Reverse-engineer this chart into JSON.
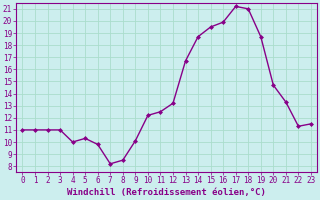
{
  "x": [
    0,
    1,
    2,
    3,
    4,
    5,
    6,
    7,
    8,
    9,
    10,
    11,
    12,
    13,
    14,
    15,
    16,
    17,
    18,
    19,
    20,
    21,
    22,
    23
  ],
  "y": [
    11.0,
    11.0,
    11.0,
    11.0,
    10.0,
    10.3,
    9.8,
    8.2,
    8.5,
    10.1,
    12.2,
    12.5,
    13.2,
    16.7,
    18.7,
    19.5,
    19.9,
    21.2,
    21.0,
    18.7,
    14.7,
    13.3,
    11.3,
    11.5
  ],
  "line_color": "#880088",
  "marker": "D",
  "marker_size": 2.0,
  "bg_color": "#cceeee",
  "grid_color": "#aaddcc",
  "xlabel": "Windchill (Refroidissement éolien,°C)",
  "xlabel_color": "#880088",
  "tick_color": "#880088",
  "label_color": "#880088",
  "ylim": [
    7.5,
    21.5
  ],
  "xlim": [
    -0.5,
    23.5
  ],
  "yticks": [
    8,
    9,
    10,
    11,
    12,
    13,
    14,
    15,
    16,
    17,
    18,
    19,
    20,
    21
  ],
  "xticks": [
    0,
    1,
    2,
    3,
    4,
    5,
    6,
    7,
    8,
    9,
    10,
    11,
    12,
    13,
    14,
    15,
    16,
    17,
    18,
    19,
    20,
    21,
    22,
    23
  ],
  "tick_fontsize": 5.5,
  "xlabel_fontsize": 6.5,
  "linewidth": 1.0
}
